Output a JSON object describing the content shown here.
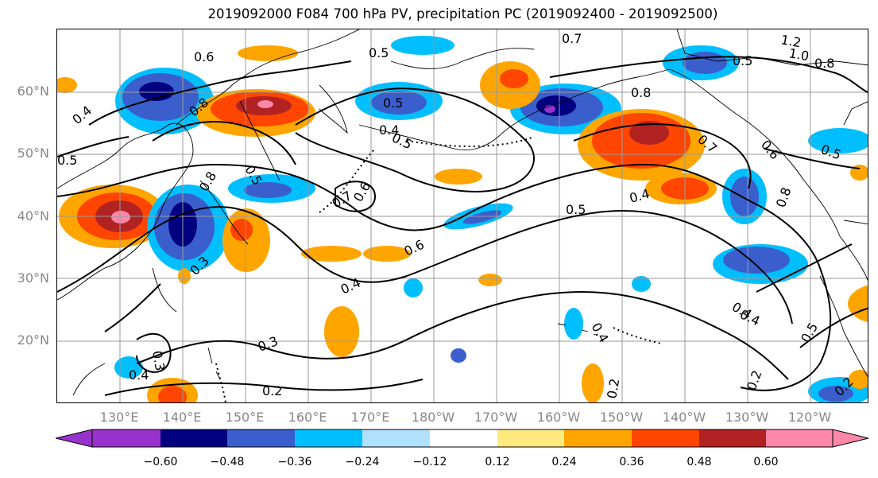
{
  "title": "2019092000 F084 700 hPa PV, precipitation PC (2019092400 - 2019092500)",
  "lat_labels": [
    "60°N",
    "50°N",
    "40°N",
    "30°N",
    "20°N"
  ],
  "lon_labels": [
    "130°E",
    "140°E",
    "150°E",
    "160°E",
    "170°E",
    "180°W",
    "170°W",
    "160°W",
    "150°W",
    "140°W",
    "130°W",
    "120°W"
  ],
  "colorbar": {
    "ticks": [
      "−0.60",
      "−0.48",
      "−0.36",
      "−0.24",
      "−0.12",
      "0.12",
      "0.24",
      "0.36",
      "0.48",
      "0.60"
    ],
    "colors": [
      "#9932cc",
      "#000080",
      "#3a5fcd",
      "#00bfff",
      "#b0e2ff",
      "#ffffff",
      "#ffea80",
      "#ffa500",
      "#ff4500",
      "#b22222",
      "#ff88aa"
    ]
  },
  "contour_labels": [
    {
      "text": "0.6"
    },
    {
      "text": "0.5"
    },
    {
      "text": "0.7"
    },
    {
      "text": "0.8"
    },
    {
      "text": "0.4"
    },
    {
      "text": "0.5"
    },
    {
      "text": "0.5"
    },
    {
      "text": "0.4"
    },
    {
      "text": "0.7"
    },
    {
      "text": "0.6"
    },
    {
      "text": "0.5"
    },
    {
      "text": "0.6"
    },
    {
      "text": "0.4"
    },
    {
      "text": "0.3"
    },
    {
      "text": "0.3"
    },
    {
      "text": "0.2"
    },
    {
      "text": "0.4"
    },
    {
      "text": "0.3"
    },
    {
      "text": "0.4"
    },
    {
      "text": "0.8"
    },
    {
      "text": "0.7"
    },
    {
      "text": "0.6"
    },
    {
      "text": "0.5"
    },
    {
      "text": "0.4"
    },
    {
      "text": "0.5"
    },
    {
      "text": "0.8"
    },
    {
      "text": "0.5"
    },
    {
      "text": "1.0"
    },
    {
      "text": "0.8"
    },
    {
      "text": "1.2"
    },
    {
      "text": "0.4"
    },
    {
      "text": "0.5"
    },
    {
      "text": "0.2"
    },
    {
      "text": "0.2"
    },
    {
      "text": "0.4"
    },
    {
      "text": "0.2"
    },
    {
      "text": "0.5"
    },
    {
      "text": "0.8"
    }
  ]
}
